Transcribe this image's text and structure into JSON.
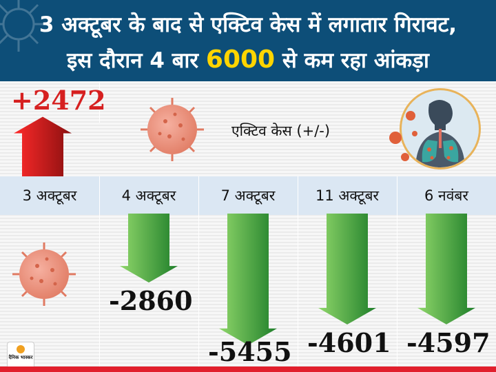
{
  "header": {
    "line1": "3 अक्टूबर के बाद से एक्टिव केस में लगातार गिरावट,",
    "line2_pre": "इस दौरान 4 बार",
    "line2_highlight": "6000",
    "line2_post": "से कम रहा आंकड़ा"
  },
  "legend_label": "एक्टिव केस (+/-)",
  "logo_text": "दैनिक भास्कर",
  "colors": {
    "header_bg": "#0d4e78",
    "highlight": "#ffd500",
    "up_bar": "#d62020",
    "down_bar": "#2e9e2e",
    "date_band": "#dbe7f3"
  },
  "chart_data": {
    "type": "bar",
    "title": "एक्टिव केस (+/-)",
    "categories": [
      "3 अक्टूबर",
      "4 अक्टूबर",
      "7 अक्टूबर",
      "11 अक्टूबर",
      "6 नवंबर"
    ],
    "values": [
      2472,
      -2860,
      -5455,
      -4601,
      -4597
    ],
    "value_labels": [
      "+2472",
      "-2860",
      "-5455",
      "-4601",
      "-4597"
    ]
  }
}
